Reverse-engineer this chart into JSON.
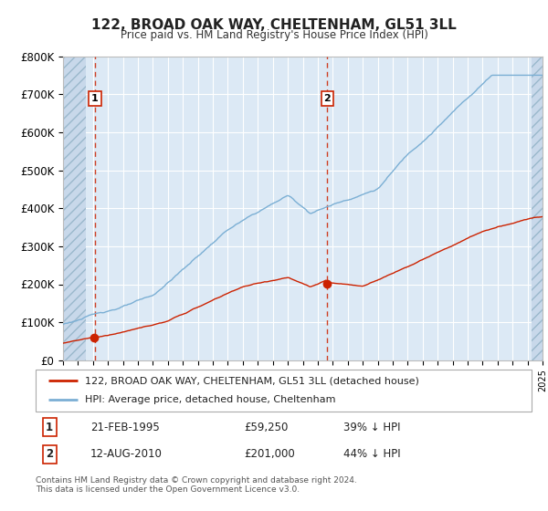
{
  "title": "122, BROAD OAK WAY, CHELTENHAM, GL51 3LL",
  "subtitle": "Price paid vs. HM Land Registry's House Price Index (HPI)",
  "legend_line1": "122, BROAD OAK WAY, CHELTENHAM, GL51 3LL (detached house)",
  "legend_line2": "HPI: Average price, detached house, Cheltenham",
  "transaction1_date": "21-FEB-1995",
  "transaction1_price": "£59,250",
  "transaction1_hpi": "39% ↓ HPI",
  "transaction2_date": "12-AUG-2010",
  "transaction2_price": "£201,000",
  "transaction2_hpi": "44% ↓ HPI",
  "footnote1": "Contains HM Land Registry data © Crown copyright and database right 2024.",
  "footnote2": "This data is licensed under the Open Government Licence v3.0.",
  "hpi_color": "#7bafd4",
  "price_color": "#cc2200",
  "vline_color": "#cc2200",
  "bg_color": "#dce9f5",
  "hatch_bg_color": "#c8d8ea",
  "grid_color": "#ffffff",
  "spine_color": "#bbbbbb",
  "ylim": [
    0,
    800000
  ],
  "ytick_vals": [
    0,
    100000,
    200000,
    300000,
    400000,
    500000,
    600000,
    700000,
    800000
  ],
  "ytick_labels": [
    "£0",
    "£100K",
    "£200K",
    "£300K",
    "£400K",
    "£500K",
    "£600K",
    "£700K",
    "£800K"
  ],
  "xstart": 1993,
  "xend": 2025,
  "t1_year": 1995,
  "t1_month": 2,
  "t1_price": 59250,
  "t2_year": 2010,
  "t2_month": 8,
  "t2_price": 201000
}
